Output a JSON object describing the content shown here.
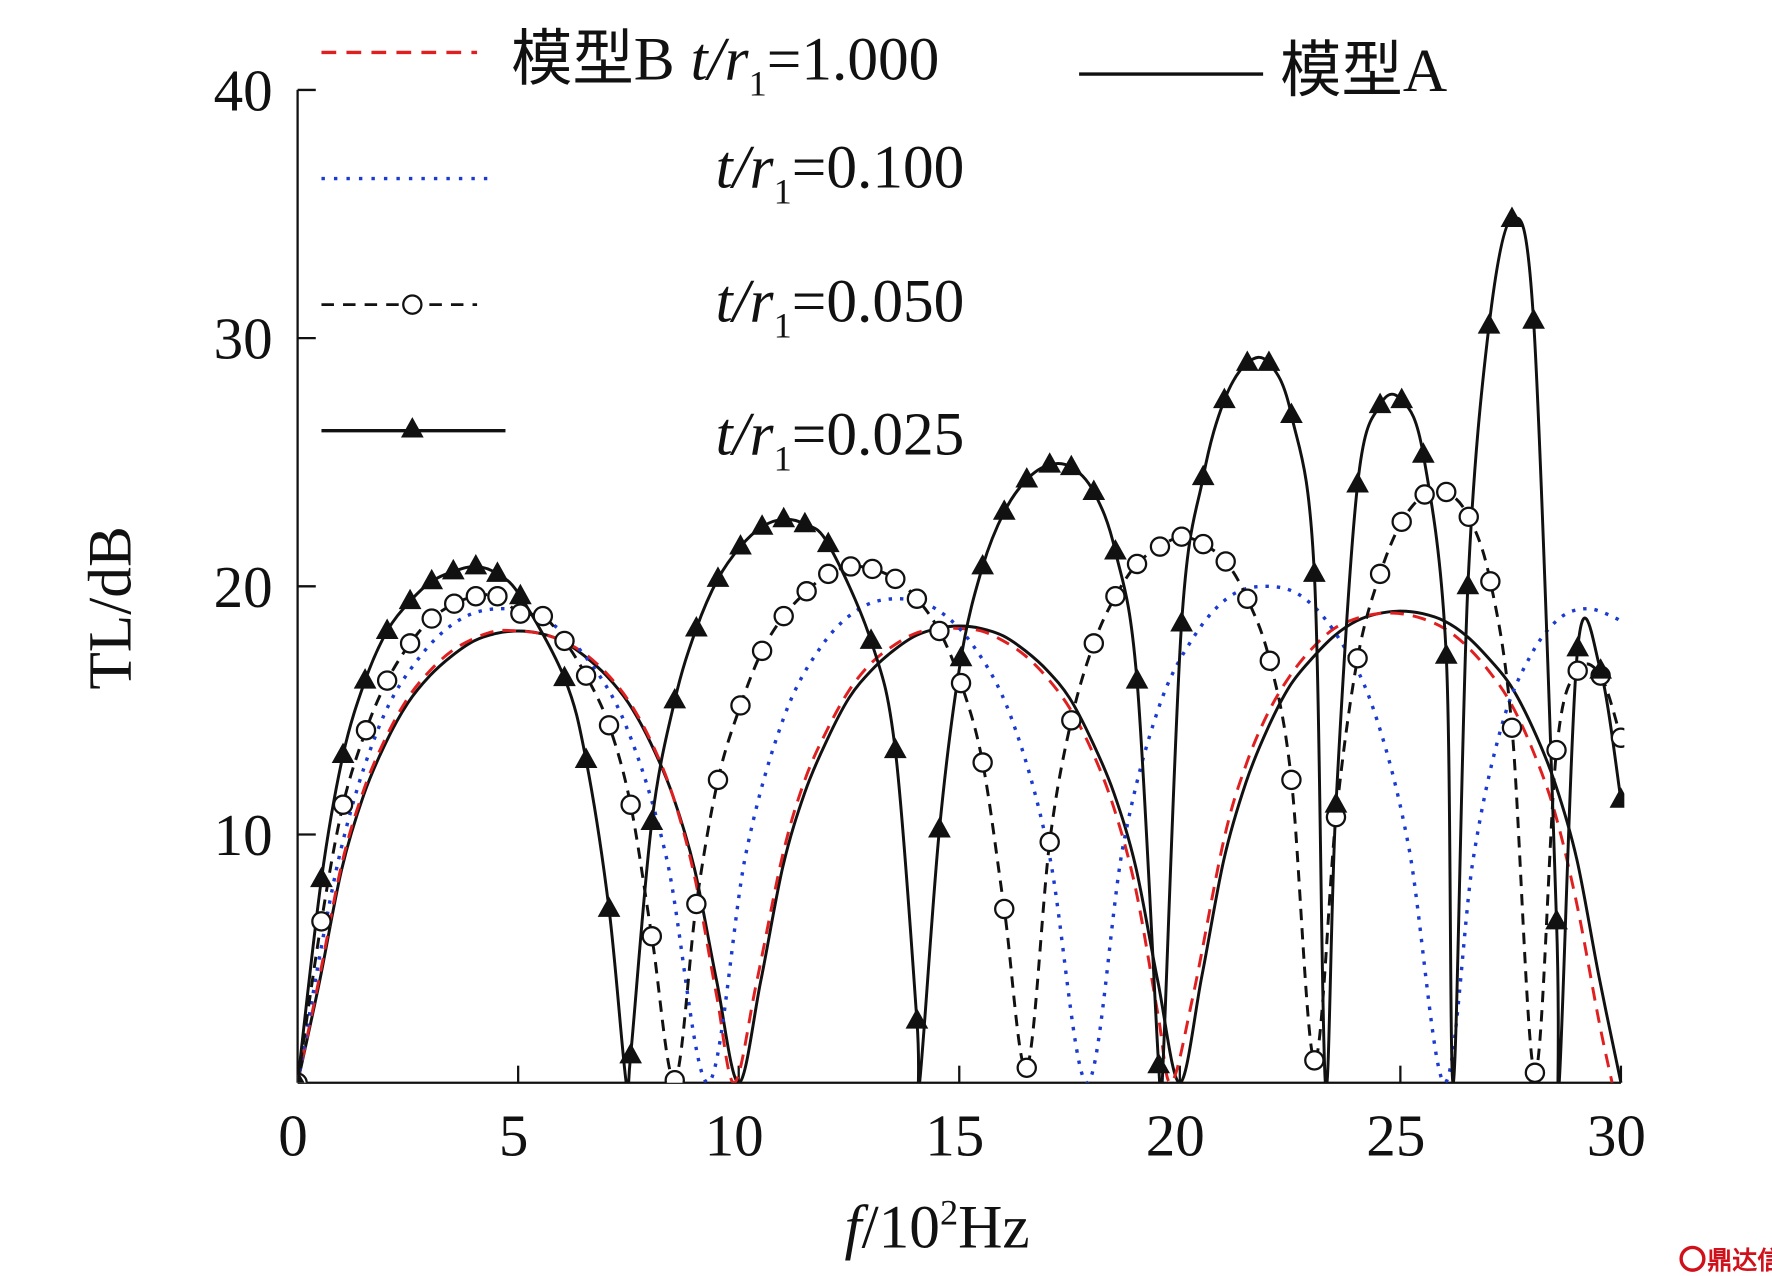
{
  "chart_data": {
    "type": "line",
    "title": "",
    "xlabel": {
      "italic": "f",
      "unit_prefix": "/10",
      "exp": "2",
      "unit": "Hz"
    },
    "ylabel": "TL/dB",
    "xlim": [
      0,
      30
    ],
    "ylim": [
      0,
      40
    ],
    "xticks": [
      "0",
      "5",
      "10",
      "15",
      "20",
      "25",
      "30"
    ],
    "yticks": [
      "10",
      "20",
      "30",
      "40"
    ],
    "grid": false,
    "legend_position": "top",
    "series": [
      {
        "id": "modelA",
        "legend": {
          "model": "模型A",
          "var": "",
          "sub": "",
          "value": ""
        },
        "style": "solid",
        "color": "#111111",
        "marker": "none",
        "points": [
          [
            0,
            0
          ],
          [
            0.5,
            4.1
          ],
          [
            1,
            8.6
          ],
          [
            1.5,
            11.6
          ],
          [
            2,
            13.7
          ],
          [
            2.5,
            15.3
          ],
          [
            3,
            16.4
          ],
          [
            3.5,
            17.2
          ],
          [
            4,
            17.8
          ],
          [
            4.5,
            18.1
          ],
          [
            5,
            18.2
          ],
          [
            5.5,
            18.1
          ],
          [
            6,
            17.8
          ],
          [
            6.5,
            17.2
          ],
          [
            7,
            16.4
          ],
          [
            7.5,
            15.3
          ],
          [
            8,
            13.7
          ],
          [
            8.5,
            11.6
          ],
          [
            9,
            8.6
          ],
          [
            9.5,
            4.1
          ],
          [
            10,
            0
          ],
          [
            10.5,
            4.1
          ],
          [
            11,
            8.7
          ],
          [
            11.5,
            11.7
          ],
          [
            12,
            13.8
          ],
          [
            12.5,
            15.5
          ],
          [
            13,
            16.6
          ],
          [
            13.5,
            17.4
          ],
          [
            14,
            18.0
          ],
          [
            14.5,
            18.3
          ],
          [
            15,
            18.4
          ],
          [
            15.5,
            18.3
          ],
          [
            16,
            18.0
          ],
          [
            16.5,
            17.4
          ],
          [
            17,
            16.6
          ],
          [
            17.5,
            15.5
          ],
          [
            18,
            13.8
          ],
          [
            18.5,
            11.7
          ],
          [
            19,
            8.7
          ],
          [
            19.5,
            4.1
          ],
          [
            20,
            0
          ],
          [
            20.5,
            4.3
          ],
          [
            21,
            9.0
          ],
          [
            21.5,
            12.1
          ],
          [
            22,
            14.3
          ],
          [
            22.5,
            16.0
          ],
          [
            23,
            17.1
          ],
          [
            23.5,
            18.0
          ],
          [
            24,
            18.6
          ],
          [
            24.5,
            18.9
          ],
          [
            25,
            19.0
          ],
          [
            25.5,
            18.9
          ],
          [
            26,
            18.6
          ],
          [
            26.5,
            18.0
          ],
          [
            27,
            17.1
          ],
          [
            27.5,
            16.0
          ],
          [
            28,
            14.3
          ],
          [
            28.5,
            12.1
          ],
          [
            29,
            9.0
          ],
          [
            29.5,
            4.3
          ],
          [
            30,
            0
          ]
        ]
      },
      {
        "id": "modelB-1.000",
        "legend": {
          "model": "模型B",
          "var": "t/r",
          "sub": "1",
          "value": "=1.000"
        },
        "style": "dashed",
        "color": "#e02020",
        "marker": "none",
        "points": [
          [
            0,
            0
          ],
          [
            0.5,
            4.3
          ],
          [
            1,
            8.8
          ],
          [
            1.5,
            11.8
          ],
          [
            2,
            13.9
          ],
          [
            2.5,
            15.5
          ],
          [
            3,
            16.6
          ],
          [
            3.5,
            17.4
          ],
          [
            4,
            17.9
          ],
          [
            4.5,
            18.2
          ],
          [
            5,
            18.2
          ],
          [
            5.5,
            18.1
          ],
          [
            6,
            17.8
          ],
          [
            6.5,
            17.3
          ],
          [
            7,
            16.5
          ],
          [
            7.5,
            15.4
          ],
          [
            8,
            13.8
          ],
          [
            8.5,
            11.6
          ],
          [
            9,
            8.3
          ],
          [
            9.5,
            3.5
          ],
          [
            9.9,
            0
          ],
          [
            10.4,
            4.0
          ],
          [
            11,
            9.2
          ],
          [
            11.5,
            12.2
          ],
          [
            12,
            14.2
          ],
          [
            12.5,
            15.8
          ],
          [
            13,
            16.9
          ],
          [
            13.5,
            17.6
          ],
          [
            14,
            18.1
          ],
          [
            14.5,
            18.3
          ],
          [
            15,
            18.3
          ],
          [
            15.5,
            18.2
          ],
          [
            16,
            17.8
          ],
          [
            16.5,
            17.2
          ],
          [
            17,
            16.3
          ],
          [
            17.5,
            15.1
          ],
          [
            18,
            13.4
          ],
          [
            18.5,
            11.1
          ],
          [
            19,
            7.8
          ],
          [
            19.5,
            2.8
          ],
          [
            19.8,
            0
          ],
          [
            20.3,
            3.5
          ],
          [
            21,
            9.8
          ],
          [
            21.5,
            12.8
          ],
          [
            22,
            14.9
          ],
          [
            22.5,
            16.4
          ],
          [
            23,
            17.5
          ],
          [
            23.5,
            18.3
          ],
          [
            24,
            18.7
          ],
          [
            24.5,
            18.9
          ],
          [
            25,
            18.9
          ],
          [
            25.5,
            18.7
          ],
          [
            26,
            18.3
          ],
          [
            26.5,
            17.6
          ],
          [
            27,
            16.6
          ],
          [
            27.5,
            15.3
          ],
          [
            28,
            13.4
          ],
          [
            28.5,
            10.9
          ],
          [
            29,
            7.2
          ],
          [
            29.5,
            2.5
          ],
          [
            29.8,
            0
          ]
        ]
      },
      {
        "id": "modelB-0.100",
        "legend": {
          "model": "",
          "var": "t/r",
          "sub": "1",
          "value": "=0.100"
        },
        "style": "dotted",
        "color": "#1a3ad0",
        "marker": "none",
        "points": [
          [
            0,
            0
          ],
          [
            0.93,
            9.0
          ],
          [
            1.86,
            14.4
          ],
          [
            2.79,
            17.2
          ],
          [
            3.72,
            18.7
          ],
          [
            4.65,
            19.1
          ],
          [
            5.58,
            18.7
          ],
          [
            6.51,
            17.2
          ],
          [
            7.44,
            14.4
          ],
          [
            8.37,
            9.0
          ],
          [
            9.3,
            0
          ],
          [
            10.16,
            9.2
          ],
          [
            11.02,
            14.7
          ],
          [
            11.88,
            17.6
          ],
          [
            12.74,
            19.1
          ],
          [
            13.6,
            19.5
          ],
          [
            14.46,
            19.1
          ],
          [
            15.32,
            17.6
          ],
          [
            16.18,
            14.7
          ],
          [
            17.04,
            9.2
          ],
          [
            17.9,
            0
          ],
          [
            18.71,
            9.5
          ],
          [
            19.52,
            15.1
          ],
          [
            20.33,
            18.0
          ],
          [
            21.14,
            19.6
          ],
          [
            21.95,
            20.0
          ],
          [
            22.76,
            19.6
          ],
          [
            23.57,
            18.0
          ],
          [
            24.38,
            15.1
          ],
          [
            25.19,
            9.5
          ],
          [
            26.0,
            0
          ],
          [
            26.65,
            9.0
          ],
          [
            27.3,
            14.4
          ],
          [
            27.95,
            17.2
          ],
          [
            28.6,
            18.7
          ],
          [
            29.25,
            19.1
          ],
          [
            29.9,
            18.7
          ],
          [
            30,
            18.5
          ]
        ]
      },
      {
        "id": "modelB-0.050",
        "legend": {
          "model": "",
          "var": "t/r",
          "sub": "1",
          "value": "=0.050"
        },
        "style": "dashed",
        "color": "#111111",
        "marker": "circle",
        "points": [
          [
            0,
            0
          ],
          [
            0.54,
            6.5
          ],
          [
            1.03,
            11.2
          ],
          [
            1.55,
            14.2
          ],
          [
            2.03,
            16.2
          ],
          [
            2.55,
            17.7
          ],
          [
            3.04,
            18.7
          ],
          [
            3.55,
            19.3
          ],
          [
            4.04,
            19.6
          ],
          [
            4.53,
            19.6
          ],
          [
            5.05,
            18.9
          ],
          [
            5.56,
            18.8
          ],
          [
            6.05,
            17.8
          ],
          [
            6.54,
            16.4
          ],
          [
            7.06,
            14.4
          ],
          [
            7.55,
            11.2
          ],
          [
            8.03,
            5.9
          ],
          [
            8.55,
            0.1
          ],
          [
            9.04,
            7.2
          ],
          [
            9.53,
            12.2
          ],
          [
            10.04,
            15.2
          ],
          [
            10.53,
            17.4
          ],
          [
            11.02,
            18.8
          ],
          [
            11.54,
            19.8
          ],
          [
            12.03,
            20.5
          ],
          [
            12.54,
            20.8
          ],
          [
            13.03,
            20.7
          ],
          [
            13.55,
            20.3
          ],
          [
            14.04,
            19.5
          ],
          [
            14.55,
            18.2
          ],
          [
            15.04,
            16.1
          ],
          [
            15.53,
            12.9
          ],
          [
            16.02,
            7.0
          ],
          [
            16.53,
            0.6
          ],
          [
            17.05,
            9.7
          ],
          [
            17.54,
            14.6
          ],
          [
            18.05,
            17.7
          ],
          [
            18.54,
            19.6
          ],
          [
            19.03,
            20.9
          ],
          [
            19.55,
            21.6
          ],
          [
            20.04,
            22.0
          ],
          [
            20.53,
            21.7
          ],
          [
            21.04,
            21.0
          ],
          [
            21.53,
            19.5
          ],
          [
            22.04,
            17.0
          ],
          [
            22.53,
            12.2
          ],
          [
            23.05,
            0.9
          ],
          [
            23.54,
            10.7
          ],
          [
            24.03,
            17.1
          ],
          [
            24.54,
            20.5
          ],
          [
            25.03,
            22.6
          ],
          [
            25.55,
            23.7
          ],
          [
            26.04,
            23.8
          ],
          [
            26.55,
            22.8
          ],
          [
            27.04,
            20.2
          ],
          [
            27.53,
            14.3
          ],
          [
            28.05,
            0.4
          ],
          [
            28.54,
            13.4
          ],
          [
            29.02,
            16.6
          ],
          [
            29.54,
            16.4
          ],
          [
            30,
            13.9
          ]
        ]
      },
      {
        "id": "modelB-0.025",
        "legend": {
          "model": "",
          "var": "t/r",
          "sub": "1",
          "value": "=0.025"
        },
        "style": "solid",
        "color": "#111111",
        "marker": "triangle",
        "points": [
          [
            0,
            0
          ],
          [
            0.54,
            8.2
          ],
          [
            1.03,
            13.2
          ],
          [
            1.53,
            16.2
          ],
          [
            2.03,
            18.2
          ],
          [
            2.55,
            19.4
          ],
          [
            3.04,
            20.2
          ],
          [
            3.53,
            20.6
          ],
          [
            4.04,
            20.8
          ],
          [
            4.53,
            20.5
          ],
          [
            5.05,
            19.6
          ],
          [
            6.05,
            16.3
          ],
          [
            6.54,
            13.0
          ],
          [
            7.06,
            7.0
          ],
          [
            7.55,
            1.1
          ],
          [
            8.03,
            10.5
          ],
          [
            8.55,
            15.4
          ],
          [
            9.04,
            18.3
          ],
          [
            9.53,
            20.3
          ],
          [
            10.04,
            21.6
          ],
          [
            10.53,
            22.4
          ],
          [
            11.02,
            22.7
          ],
          [
            11.5,
            22.5
          ],
          [
            12.03,
            21.7
          ],
          [
            13.0,
            17.8
          ],
          [
            13.55,
            13.4
          ],
          [
            14.04,
            2.5
          ],
          [
            14.55,
            10.2
          ],
          [
            15.04,
            17.1
          ],
          [
            15.53,
            20.8
          ],
          [
            16.02,
            23.0
          ],
          [
            16.53,
            24.3
          ],
          [
            17.05,
            24.9
          ],
          [
            17.54,
            24.8
          ],
          [
            18.05,
            23.8
          ],
          [
            18.54,
            21.4
          ],
          [
            19.03,
            16.2
          ],
          [
            19.52,
            0.7
          ],
          [
            20.04,
            18.5
          ],
          [
            20.53,
            24.4
          ],
          [
            21.01,
            27.5
          ],
          [
            21.53,
            29.0
          ],
          [
            22.02,
            29.0
          ],
          [
            22.53,
            26.9
          ],
          [
            23.05,
            20.5
          ],
          [
            23.54,
            11.2
          ],
          [
            24.03,
            24.1
          ],
          [
            24.54,
            27.3
          ],
          [
            25.03,
            27.5
          ],
          [
            25.52,
            25.3
          ],
          [
            26.04,
            17.2
          ],
          [
            26.53,
            20.0
          ],
          [
            27.01,
            30.5
          ],
          [
            27.53,
            34.8
          ],
          [
            28.02,
            30.7
          ],
          [
            28.54,
            6.5
          ],
          [
            29.02,
            17.5
          ],
          [
            29.54,
            16.6
          ],
          [
            30,
            11.4
          ]
        ],
        "zeros": [
          7.45,
          14.1,
          19.6,
          23.3,
          26.2,
          28.6
        ]
      }
    ]
  },
  "watermark": {
    "text": "鼎达信",
    "color": "#d0101a"
  }
}
